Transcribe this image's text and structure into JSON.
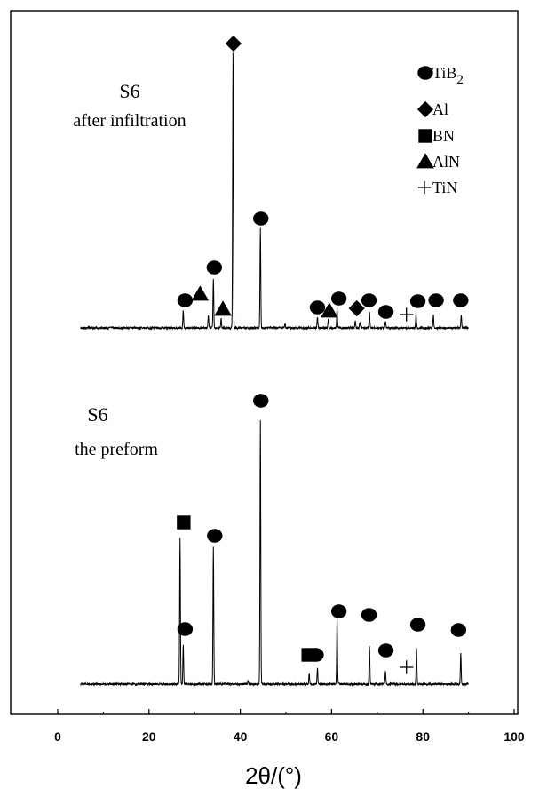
{
  "chart_data": {
    "type": "line",
    "title": "",
    "xlabel": "2θ/(°)",
    "ylabel": "",
    "xlim": [
      -10,
      100
    ],
    "xticks": [
      0,
      20,
      40,
      60,
      80,
      100
    ],
    "y_axis_ticks_shown": false,
    "grid": false,
    "legend_placement": "top-right",
    "legend": [
      {
        "marker": "circle",
        "label": "TiB",
        "subscript": "2"
      },
      {
        "marker": "diamond",
        "label": "Al"
      },
      {
        "marker": "square",
        "label": "BN"
      },
      {
        "marker": "triangle",
        "label": "AlN"
      },
      {
        "marker": "plus",
        "label": "TiN"
      }
    ],
    "series": [
      {
        "name": "S6 after infiltration",
        "label_lines": [
          "S6",
          "after infiltration"
        ],
        "x_range": [
          5,
          90
        ],
        "peaks": [
          {
            "x": 27.5,
            "h": 20
          },
          {
            "x": 33.0,
            "h": 14
          },
          {
            "x": 34.1,
            "h": 55
          },
          {
            "x": 35.8,
            "h": 10
          },
          {
            "x": 38.4,
            "h": 310
          },
          {
            "x": 44.4,
            "h": 112
          },
          {
            "x": 49.8,
            "h": 4
          },
          {
            "x": 56.9,
            "h": 12
          },
          {
            "x": 59.3,
            "h": 10
          },
          {
            "x": 61.2,
            "h": 22
          },
          {
            "x": 65.2,
            "h": 8
          },
          {
            "x": 66.2,
            "h": 7
          },
          {
            "x": 68.3,
            "h": 18
          },
          {
            "x": 71.8,
            "h": 8
          },
          {
            "x": 78.5,
            "h": 16
          },
          {
            "x": 82.3,
            "h": 14
          },
          {
            "x": 88.4,
            "h": 15
          }
        ],
        "markers": [
          {
            "type": "circle",
            "x": 27.9
          },
          {
            "type": "triangle",
            "x": 31.2
          },
          {
            "type": "circle",
            "x": 34.3
          },
          {
            "type": "triangle",
            "x": 36.2
          },
          {
            "type": "diamond",
            "x": 38.5
          },
          {
            "type": "circle",
            "x": 44.5
          },
          {
            "type": "circle",
            "x": 56.9
          },
          {
            "type": "triangle",
            "x": 59.5
          },
          {
            "type": "circle",
            "x": 61.6
          },
          {
            "type": "diamond",
            "x": 65.5
          },
          {
            "type": "circle",
            "x": 68.2
          },
          {
            "type": "circle",
            "x": 71.9
          },
          {
            "type": "plus",
            "x": 76.4
          },
          {
            "type": "circle",
            "x": 78.9
          },
          {
            "type": "circle",
            "x": 82.9
          },
          {
            "type": "circle",
            "x": 88.3
          }
        ]
      },
      {
        "name": "S6 the preform",
        "label_lines": [
          "S6",
          "the preform"
        ],
        "x_range": [
          5,
          90
        ],
        "peaks": [
          {
            "x": 26.8,
            "h": 165
          },
          {
            "x": 27.5,
            "h": 45
          },
          {
            "x": 34.1,
            "h": 155
          },
          {
            "x": 41.7,
            "h": 4
          },
          {
            "x": 44.4,
            "h": 298
          },
          {
            "x": 55.1,
            "h": 12
          },
          {
            "x": 56.9,
            "h": 18
          },
          {
            "x": 61.2,
            "h": 75
          },
          {
            "x": 68.3,
            "h": 42
          },
          {
            "x": 71.8,
            "h": 14
          },
          {
            "x": 78.6,
            "h": 40
          },
          {
            "x": 88.3,
            "h": 35
          }
        ],
        "markers": [
          {
            "type": "square",
            "x": 27.6
          },
          {
            "type": "circle",
            "x": 27.9
          },
          {
            "type": "circle",
            "x": 34.4
          },
          {
            "type": "circle",
            "x": 44.5
          },
          {
            "type": "square",
            "x": 54.9
          },
          {
            "type": "circle",
            "x": 56.6
          },
          {
            "type": "circle",
            "x": 61.6
          },
          {
            "type": "circle",
            "x": 68.2
          },
          {
            "type": "circle",
            "x": 71.9
          },
          {
            "type": "plus",
            "x": 76.4
          },
          {
            "type": "circle",
            "x": 78.9
          },
          {
            "type": "circle",
            "x": 87.8
          }
        ]
      }
    ]
  }
}
